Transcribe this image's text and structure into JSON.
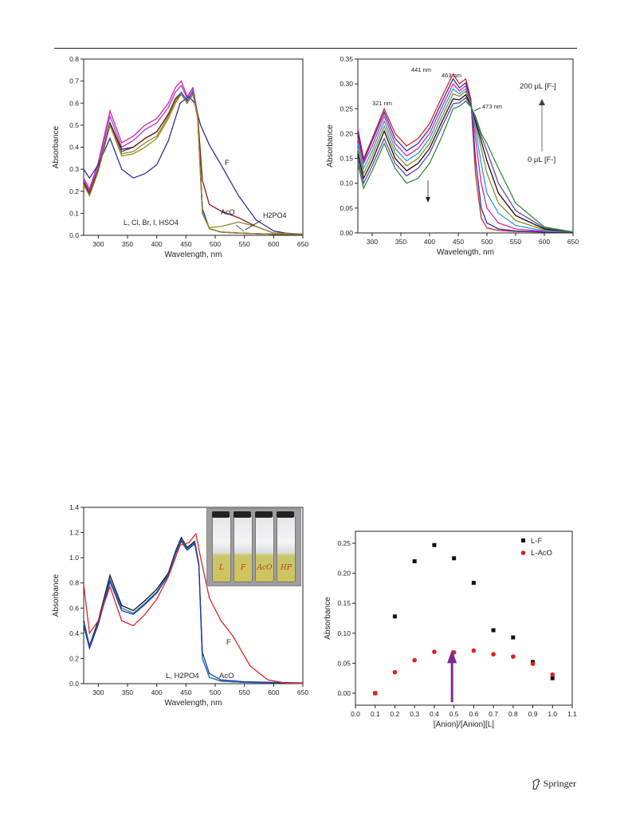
{
  "publisher": {
    "name": "Springer"
  },
  "chart_data": [
    {
      "type": "line",
      "xlabel": "Wavelength, nm",
      "ylabel": "Absorbance",
      "xlim": [
        275,
        650
      ],
      "ylim": [
        0,
        0.8
      ],
      "xticks": [
        "300",
        "350",
        "400",
        "450",
        "500",
        "550",
        "600",
        "650"
      ],
      "yticks": [
        "0.0",
        "0.1",
        "0.2",
        "0.3",
        "0.4",
        "0.5",
        "0.6",
        "0.7",
        "0.8"
      ],
      "annotations": [
        "F",
        "AcO",
        "H2PO4",
        "L, Cl, Br, I, HSO4"
      ],
      "series": [
        {
          "color": "#e0219b",
          "x": [
            275,
            285,
            300,
            320,
            340,
            360,
            380,
            400,
            420,
            432,
            442,
            452,
            462,
            470,
            478,
            490,
            510,
            540,
            600,
            650
          ],
          "y": [
            0.26,
            0.21,
            0.33,
            0.565,
            0.42,
            0.45,
            0.5,
            0.53,
            0.6,
            0.67,
            0.7,
            0.63,
            0.67,
            0.55,
            0.12,
            0.03,
            0.015,
            0.01,
            0.005,
            0.005
          ]
        },
        {
          "color": "#a23bd9",
          "x": [
            275,
            285,
            300,
            320,
            340,
            360,
            380,
            400,
            420,
            432,
            442,
            452,
            462,
            470,
            478,
            490,
            510,
            540,
            600,
            650
          ],
          "y": [
            0.25,
            0.2,
            0.32,
            0.54,
            0.4,
            0.43,
            0.48,
            0.51,
            0.58,
            0.65,
            0.68,
            0.62,
            0.66,
            0.55,
            0.12,
            0.03,
            0.015,
            0.01,
            0.005,
            0.005
          ]
        },
        {
          "color": "#111111",
          "x": [
            275,
            285,
            300,
            320,
            340,
            360,
            380,
            400,
            420,
            432,
            442,
            452,
            462,
            470,
            478,
            490,
            510,
            540,
            600,
            650
          ],
          "y": [
            0.24,
            0.19,
            0.3,
            0.51,
            0.39,
            0.4,
            0.44,
            0.47,
            0.55,
            0.62,
            0.64,
            0.6,
            0.64,
            0.54,
            0.12,
            0.03,
            0.015,
            0.01,
            0.005,
            0.005
          ]
        },
        {
          "color": "#1f56c4",
          "x": [
            275,
            285,
            300,
            320,
            340,
            360,
            380,
            400,
            420,
            432,
            442,
            452,
            462,
            470,
            478,
            490,
            510,
            540,
            600,
            650
          ],
          "y": [
            0.23,
            0.19,
            0.3,
            0.5,
            0.38,
            0.4,
            0.44,
            0.47,
            0.55,
            0.62,
            0.65,
            0.61,
            0.65,
            0.54,
            0.12,
            0.03,
            0.015,
            0.01,
            0.005,
            0.005
          ]
        },
        {
          "color": "#9c8a14",
          "x": [
            275,
            285,
            300,
            320,
            340,
            360,
            380,
            400,
            420,
            432,
            442,
            452,
            462,
            470,
            478,
            490,
            510,
            540,
            600,
            650
          ],
          "y": [
            0.23,
            0.18,
            0.29,
            0.5,
            0.36,
            0.37,
            0.4,
            0.44,
            0.53,
            0.6,
            0.64,
            0.6,
            0.64,
            0.53,
            0.1,
            0.03,
            0.015,
            0.01,
            0.005,
            0.005
          ]
        },
        {
          "color": "#2f2f9a",
          "x": [
            275,
            285,
            300,
            320,
            340,
            360,
            380,
            400,
            420,
            440,
            455,
            465,
            475,
            490,
            510,
            540,
            570,
            600,
            620,
            650
          ],
          "y": [
            0.3,
            0.26,
            0.32,
            0.44,
            0.3,
            0.26,
            0.28,
            0.32,
            0.43,
            0.6,
            0.63,
            0.6,
            0.5,
            0.41,
            0.32,
            0.18,
            0.07,
            0.02,
            0.01,
            0.005
          ]
        },
        {
          "color": "#8b1a1a",
          "x": [
            275,
            285,
            300,
            320,
            340,
            360,
            380,
            400,
            420,
            432,
            442,
            452,
            462,
            470,
            478,
            490,
            510,
            540,
            570,
            600,
            650
          ],
          "y": [
            0.24,
            0.19,
            0.3,
            0.5,
            0.39,
            0.4,
            0.44,
            0.47,
            0.55,
            0.62,
            0.64,
            0.6,
            0.64,
            0.55,
            0.25,
            0.14,
            0.11,
            0.08,
            0.04,
            0.01,
            0.005
          ]
        },
        {
          "color": "#8c8a2a",
          "x": [
            275,
            285,
            300,
            320,
            340,
            360,
            380,
            400,
            420,
            432,
            442,
            452,
            462,
            470,
            478,
            490,
            510,
            540,
            570,
            600,
            650
          ],
          "y": [
            0.23,
            0.18,
            0.29,
            0.5,
            0.37,
            0.38,
            0.42,
            0.45,
            0.54,
            0.61,
            0.64,
            0.6,
            0.64,
            0.54,
            0.1,
            0.035,
            0.04,
            0.06,
            0.04,
            0.01,
            0.005
          ]
        }
      ]
    },
    {
      "type": "line",
      "xlabel": "Wavelength, nm",
      "ylabel": "Absorbance",
      "xlim": [
        275,
        650
      ],
      "ylim": [
        0,
        0.35
      ],
      "xticks": [
        "300",
        "350",
        "400",
        "450",
        "500",
        "550",
        "600",
        "650"
      ],
      "yticks": [
        "0.00",
        "0.05",
        "0.10",
        "0.15",
        "0.20",
        "0.25",
        "0.30",
        "0.35"
      ],
      "annotations": [
        "441 nm",
        "463 nm",
        "321 nm",
        "473 nm",
        "200 µL [F-]",
        "0 µL [F-]"
      ],
      "series": [
        {
          "color": "#d9232a",
          "x": [
            275,
            285,
            300,
            321,
            340,
            360,
            380,
            400,
            420,
            441,
            452,
            463,
            472,
            480,
            490,
            500,
            520,
            550,
            600,
            650
          ],
          "y": [
            0.21,
            0.15,
            0.19,
            0.25,
            0.2,
            0.175,
            0.19,
            0.22,
            0.27,
            0.32,
            0.3,
            0.31,
            0.27,
            0.12,
            0.03,
            0.01,
            0.005,
            0.003,
            0.002,
            0.002
          ]
        },
        {
          "color": "#2233aa",
          "x": [
            275,
            285,
            300,
            321,
            340,
            360,
            380,
            400,
            420,
            441,
            452,
            463,
            472,
            480,
            490,
            500,
            520,
            550,
            600,
            650
          ],
          "y": [
            0.2,
            0.145,
            0.185,
            0.243,
            0.19,
            0.165,
            0.18,
            0.21,
            0.26,
            0.31,
            0.292,
            0.302,
            0.265,
            0.15,
            0.05,
            0.02,
            0.008,
            0.004,
            0.002,
            0.002
          ]
        },
        {
          "color": "#e0219b",
          "x": [
            275,
            285,
            300,
            321,
            340,
            360,
            380,
            400,
            420,
            441,
            452,
            463,
            472,
            480,
            490,
            500,
            520,
            550,
            600,
            650
          ],
          "y": [
            0.19,
            0.14,
            0.175,
            0.235,
            0.18,
            0.155,
            0.17,
            0.2,
            0.25,
            0.3,
            0.286,
            0.296,
            0.262,
            0.19,
            0.1,
            0.05,
            0.02,
            0.008,
            0.003,
            0.002
          ]
        },
        {
          "color": "#1f9bd6",
          "x": [
            275,
            285,
            300,
            321,
            340,
            360,
            380,
            400,
            420,
            441,
            452,
            463,
            472,
            480,
            490,
            500,
            520,
            550,
            600,
            650
          ],
          "y": [
            0.18,
            0.13,
            0.165,
            0.225,
            0.17,
            0.145,
            0.16,
            0.19,
            0.24,
            0.29,
            0.28,
            0.29,
            0.26,
            0.21,
            0.14,
            0.08,
            0.04,
            0.015,
            0.004,
            0.002
          ]
        },
        {
          "color": "#8c8a2a",
          "x": [
            275,
            285,
            300,
            321,
            340,
            360,
            380,
            400,
            420,
            441,
            452,
            463,
            472,
            480,
            490,
            500,
            520,
            550,
            600,
            650
          ],
          "y": [
            0.17,
            0.12,
            0.155,
            0.215,
            0.16,
            0.135,
            0.15,
            0.18,
            0.23,
            0.28,
            0.275,
            0.285,
            0.258,
            0.22,
            0.17,
            0.12,
            0.06,
            0.025,
            0.006,
            0.002
          ]
        },
        {
          "color": "#111111",
          "x": [
            275,
            285,
            300,
            321,
            340,
            360,
            380,
            400,
            420,
            441,
            452,
            463,
            472,
            480,
            490,
            500,
            520,
            550,
            600,
            650
          ],
          "y": [
            0.16,
            0.11,
            0.145,
            0.205,
            0.15,
            0.125,
            0.14,
            0.17,
            0.22,
            0.27,
            0.268,
            0.278,
            0.256,
            0.225,
            0.185,
            0.145,
            0.08,
            0.035,
            0.008,
            0.002
          ]
        },
        {
          "color": "#6a3fb5",
          "x": [
            275,
            285,
            300,
            321,
            340,
            360,
            380,
            400,
            420,
            441,
            452,
            463,
            472,
            480,
            490,
            500,
            520,
            550,
            600,
            650
          ],
          "y": [
            0.15,
            0.1,
            0.135,
            0.19,
            0.14,
            0.115,
            0.13,
            0.16,
            0.21,
            0.26,
            0.262,
            0.272,
            0.255,
            0.23,
            0.195,
            0.165,
            0.1,
            0.045,
            0.01,
            0.002
          ]
        },
        {
          "color": "#2e8b3a",
          "x": [
            275,
            285,
            300,
            321,
            340,
            360,
            380,
            400,
            420,
            441,
            452,
            463,
            472,
            480,
            490,
            500,
            520,
            550,
            600,
            650
          ],
          "y": [
            0.14,
            0.09,
            0.125,
            0.18,
            0.13,
            0.1,
            0.11,
            0.14,
            0.19,
            0.25,
            0.255,
            0.265,
            0.254,
            0.235,
            0.2,
            0.18,
            0.13,
            0.06,
            0.012,
            0.002
          ]
        }
      ]
    },
    {
      "type": "line",
      "xlabel": "Wavelength, nm",
      "ylabel": "Absorbance",
      "xlim": [
        275,
        650
      ],
      "ylim": [
        0,
        1.4
      ],
      "xticks": [
        "300",
        "350",
        "400",
        "450",
        "500",
        "550",
        "600",
        "650"
      ],
      "yticks": [
        "0.0",
        "0.2",
        "0.4",
        "0.6",
        "0.8",
        "1.0",
        "1.2",
        "1.4"
      ],
      "annotations": [
        "F",
        "L, H2PO4",
        "AcO"
      ],
      "inset_labels": [
        "L",
        "F",
        "AcO",
        "HP"
      ],
      "series": [
        {
          "color": "#111111",
          "x": [
            275,
            285,
            300,
            320,
            340,
            360,
            380,
            400,
            420,
            432,
            442,
            452,
            465,
            472,
            478,
            490,
            510,
            550,
            650
          ],
          "y": [
            0.5,
            0.3,
            0.5,
            0.86,
            0.62,
            0.58,
            0.66,
            0.75,
            0.88,
            1.05,
            1.16,
            1.08,
            1.13,
            0.95,
            0.2,
            0.05,
            0.02,
            0.01,
            0.005
          ]
        },
        {
          "color": "#1a7fb5",
          "x": [
            275,
            285,
            300,
            320,
            340,
            360,
            380,
            400,
            420,
            432,
            442,
            452,
            465,
            472,
            478,
            490,
            510,
            550,
            650
          ],
          "y": [
            0.48,
            0.29,
            0.48,
            0.83,
            0.6,
            0.56,
            0.64,
            0.73,
            0.87,
            1.04,
            1.14,
            1.07,
            1.12,
            0.94,
            0.2,
            0.05,
            0.02,
            0.01,
            0.005
          ]
        },
        {
          "color": "#2233aa",
          "x": [
            275,
            285,
            300,
            320,
            340,
            360,
            380,
            400,
            420,
            432,
            442,
            452,
            465,
            472,
            478,
            490,
            510,
            550,
            650
          ],
          "y": [
            0.46,
            0.28,
            0.47,
            0.81,
            0.58,
            0.55,
            0.63,
            0.72,
            0.86,
            1.03,
            1.13,
            1.06,
            1.11,
            0.94,
            0.25,
            0.08,
            0.03,
            0.015,
            0.005
          ]
        },
        {
          "color": "#e02525",
          "x": [
            275,
            285,
            300,
            320,
            340,
            360,
            380,
            400,
            420,
            440,
            455,
            467,
            475,
            490,
            510,
            530,
            560,
            590,
            620,
            650
          ],
          "y": [
            0.79,
            0.4,
            0.5,
            0.77,
            0.5,
            0.46,
            0.55,
            0.67,
            0.85,
            1.1,
            1.12,
            1.19,
            1.0,
            0.68,
            0.5,
            0.38,
            0.14,
            0.03,
            0.005,
            0.002
          ]
        }
      ]
    },
    {
      "type": "scatter",
      "xlabel": "[Anion]/[Anion][L]",
      "ylabel": "Absorbance",
      "xlim": [
        0.0,
        1.1
      ],
      "ylim": [
        -0.02,
        0.27
      ],
      "xticks": [
        "0.0",
        "0.1",
        "0.2",
        "0.3",
        "0.4",
        "0.5",
        "0.6",
        "0.7",
        "0.8",
        "0.9",
        "1.0",
        "1.1"
      ],
      "yticks": [
        "0.00",
        "0.05",
        "0.10",
        "0.15",
        "0.20",
        "0.25"
      ],
      "legend_position": "top-right",
      "arrow_x": 0.49,
      "series": [
        {
          "name": "L-F",
          "color": "#111111",
          "marker": "square",
          "x": [
            0.1,
            0.2,
            0.3,
            0.4,
            0.5,
            0.6,
            0.7,
            0.8,
            0.9,
            1.0
          ],
          "y": [
            0.0,
            0.128,
            0.22,
            0.247,
            0.225,
            0.184,
            0.105,
            0.093,
            0.052,
            0.025
          ]
        },
        {
          "name": "L-AcO",
          "color": "#e02020",
          "marker": "circle",
          "x": [
            0.1,
            0.2,
            0.3,
            0.4,
            0.5,
            0.6,
            0.7,
            0.8,
            0.9,
            1.0
          ],
          "y": [
            0.0,
            0.035,
            0.055,
            0.069,
            0.068,
            0.071,
            0.065,
            0.061,
            0.049,
            0.031
          ]
        }
      ]
    }
  ]
}
